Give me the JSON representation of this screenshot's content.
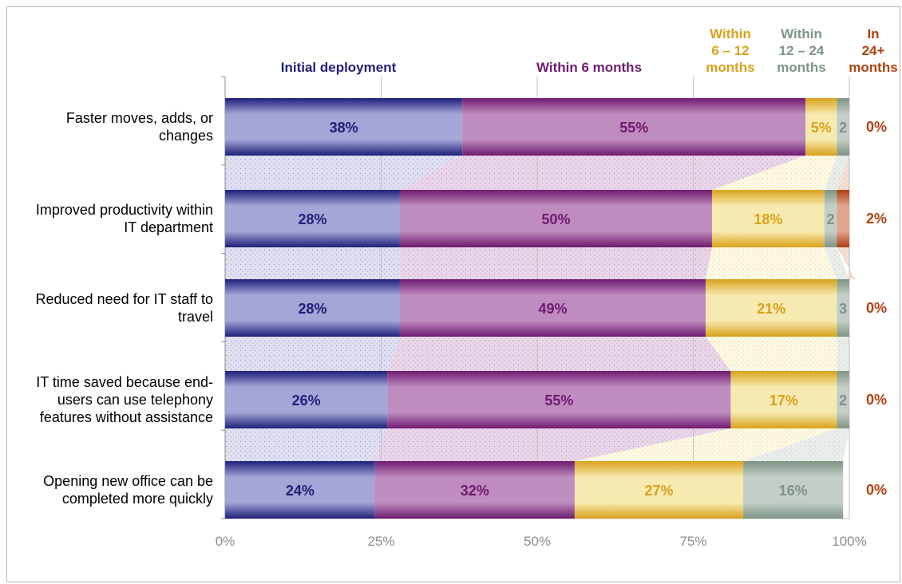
{
  "chart_data": {
    "type": "bar",
    "orientation": "horizontal",
    "stacked": true,
    "percent_stacked": true,
    "categories": [
      "Faster moves, adds, or changes",
      "Improved productivity within IT department",
      "Reduced need for IT staff to travel",
      "IT time saved because end-users can use telephony features without assistance",
      "Opening new office can be completed more quickly"
    ],
    "category_lines": [
      [
        "Faster moves, adds, or",
        "changes"
      ],
      [
        "Improved productivity within",
        "IT department"
      ],
      [
        "Reduced need for IT staff to",
        "travel"
      ],
      [
        "IT time saved because end-",
        "users can use telephony",
        "features without assistance"
      ],
      [
        "Opening new office can be",
        "completed more quickly"
      ]
    ],
    "series": [
      {
        "name": "Initial deployment",
        "name_lines": [
          "Initial deployment"
        ],
        "color": "#1f1f7a",
        "light": "#a3a6d6",
        "values": [
          38,
          28,
          28,
          26,
          24
        ],
        "labels": [
          "38%",
          "28%",
          "28%",
          "26%",
          "24%"
        ]
      },
      {
        "name": "Within 6 months",
        "name_lines": [
          "Within 6 months"
        ],
        "color": "#6e1b6e",
        "light": "#bf8cbf",
        "values": [
          55,
          50,
          49,
          55,
          32
        ],
        "labels": [
          "55%",
          "50%",
          "49%",
          "55%",
          "32%"
        ]
      },
      {
        "name": "Within 6 – 12 months",
        "name_lines": [
          "Within",
          "6 – 12",
          "months"
        ],
        "color": "#d9a21b",
        "light": "#f6eab0",
        "values": [
          5,
          18,
          21,
          17,
          27
        ],
        "labels": [
          "5%",
          "18%",
          "21%",
          "17%",
          "27%"
        ]
      },
      {
        "name": "Within 12 – 24 months",
        "name_lines": [
          "Within",
          "12 – 24",
          "months"
        ],
        "color": "#7f9484",
        "light": "#c3cfc6",
        "values": [
          2,
          2,
          3,
          2,
          16
        ],
        "labels": [
          "2",
          "2",
          "3",
          "2",
          "16%"
        ]
      },
      {
        "name": "In 24+ months",
        "name_lines": [
          "In",
          "24+",
          "months"
        ],
        "color": "#b0400f",
        "light": "#e0a58c",
        "values": [
          0,
          2,
          0,
          0,
          0
        ],
        "labels": [
          "0%",
          "2%",
          "0%",
          "0%",
          "0%"
        ]
      }
    ],
    "xlim": [
      0,
      100
    ],
    "x_ticks": [
      "0%",
      "25%",
      "50%",
      "75%",
      "100%"
    ],
    "grid": true,
    "legend": "top"
  }
}
